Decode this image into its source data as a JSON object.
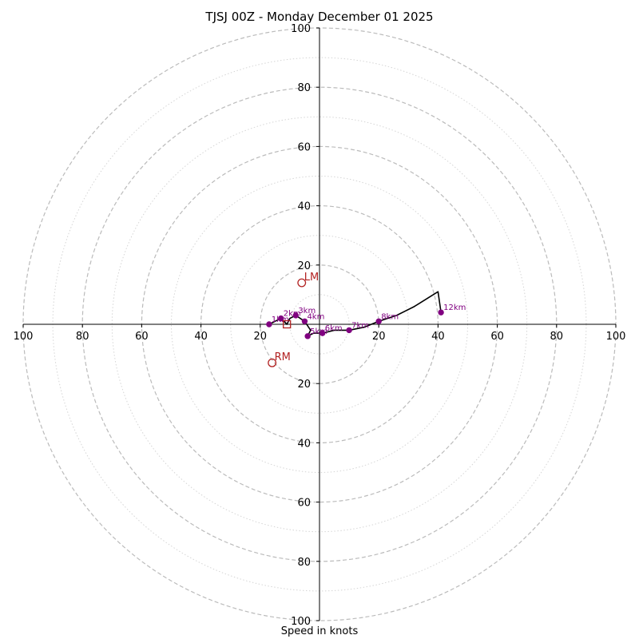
{
  "chart_data": {
    "type": "hodograph",
    "title": "TJSJ 00Z - Monday December 01 2025",
    "xlabel": "Speed in knots",
    "range": [
      -100,
      100
    ],
    "rings": [
      10,
      20,
      30,
      40,
      50,
      60,
      70,
      80,
      90,
      100
    ],
    "labeled_rings": [
      20,
      40,
      60,
      80,
      100
    ],
    "tick_labels": {
      "x": [
        "100",
        "80",
        "60",
        "40",
        "20",
        "20",
        "40",
        "60",
        "80",
        "100"
      ],
      "y": [
        "100",
        "80",
        "60",
        "40",
        "20",
        "20",
        "40",
        "60",
        "80",
        "100"
      ]
    },
    "colors": {
      "trace": "#000000",
      "height_marker": "#800080",
      "storm_motion": "#b22222",
      "ring": "#bbbbbb"
    },
    "trace": [
      [
        -17,
        0
      ],
      [
        -13,
        2
      ],
      [
        -11,
        0
      ],
      [
        -10,
        2
      ],
      [
        -8,
        3
      ],
      [
        -5,
        1
      ],
      [
        -3,
        -2
      ],
      [
        -4,
        -4
      ],
      [
        -2,
        -3
      ],
      [
        1,
        -3
      ],
      [
        5,
        -2
      ],
      [
        10,
        -2
      ],
      [
        15,
        -1
      ],
      [
        20,
        1
      ],
      [
        26,
        3
      ],
      [
        32,
        6
      ],
      [
        40,
        11
      ],
      [
        41,
        4
      ]
    ],
    "height_markers": [
      {
        "label": "1km",
        "u": -17,
        "v": 0
      },
      {
        "label": "2km",
        "u": -13,
        "v": 2
      },
      {
        "label": "3km",
        "u": -8,
        "v": 3
      },
      {
        "label": "4km",
        "u": -5,
        "v": 1
      },
      {
        "label": "5km",
        "u": -4,
        "v": -4
      },
      {
        "label": "6km",
        "u": 1,
        "v": -3
      },
      {
        "label": "7km",
        "u": 10,
        "v": -2
      },
      {
        "label": "8km",
        "u": 20,
        "v": 1
      },
      {
        "label": "12km",
        "u": 41,
        "v": 4
      }
    ],
    "storm_motions": [
      {
        "label": "LM",
        "u": -6,
        "v": 14
      },
      {
        "label": "RM",
        "u": -16,
        "v": -13
      }
    ],
    "mean_wind": {
      "u": -11,
      "v": 0
    }
  }
}
